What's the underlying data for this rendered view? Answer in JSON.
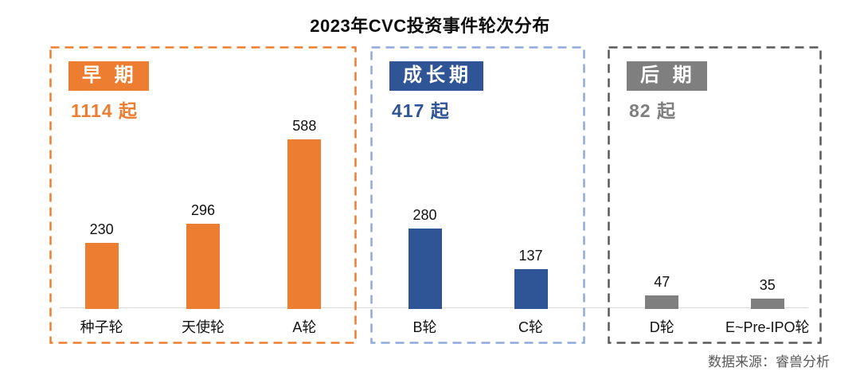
{
  "title": "2023年CVC投资事件轮次分布",
  "footer": {
    "source": "数据来源：睿兽分析"
  },
  "chart_data": {
    "type": "bar",
    "title": "2023年CVC投资事件轮次分布",
    "xlabel": "",
    "ylabel": "",
    "ylim": [
      0,
      650
    ],
    "grid": false,
    "legend": "none",
    "y_axis_visible": false,
    "value_labels": true,
    "source": "数据来源：睿兽分析",
    "groups": [
      {
        "id": "early",
        "badge_label": "早 期",
        "total_count": 1114,
        "total_label": "1114 起",
        "bar_color": "#ED7D31",
        "border_color": "#ED7D31",
        "text_color": "#ED7D31",
        "categories": [
          "种子轮",
          "天使轮",
          "A轮"
        ],
        "values": [
          230,
          296,
          588
        ]
      },
      {
        "id": "growth",
        "badge_label": "成长期",
        "total_count": 417,
        "total_label": "417 起",
        "bar_color": "#2F5597",
        "border_color": "#8FAADC",
        "text_color": "#2F5597",
        "categories": [
          "B轮",
          "C轮"
        ],
        "values": [
          280,
          137
        ]
      },
      {
        "id": "late",
        "badge_label": "后 期",
        "total_count": 82,
        "total_label": "82 起",
        "bar_color": "#7F7F7F",
        "border_color": "#595959",
        "text_color": "#7F7F7F",
        "categories": [
          "D轮",
          "E~Pre-IPO轮"
        ],
        "values": [
          47,
          35
        ]
      }
    ]
  }
}
